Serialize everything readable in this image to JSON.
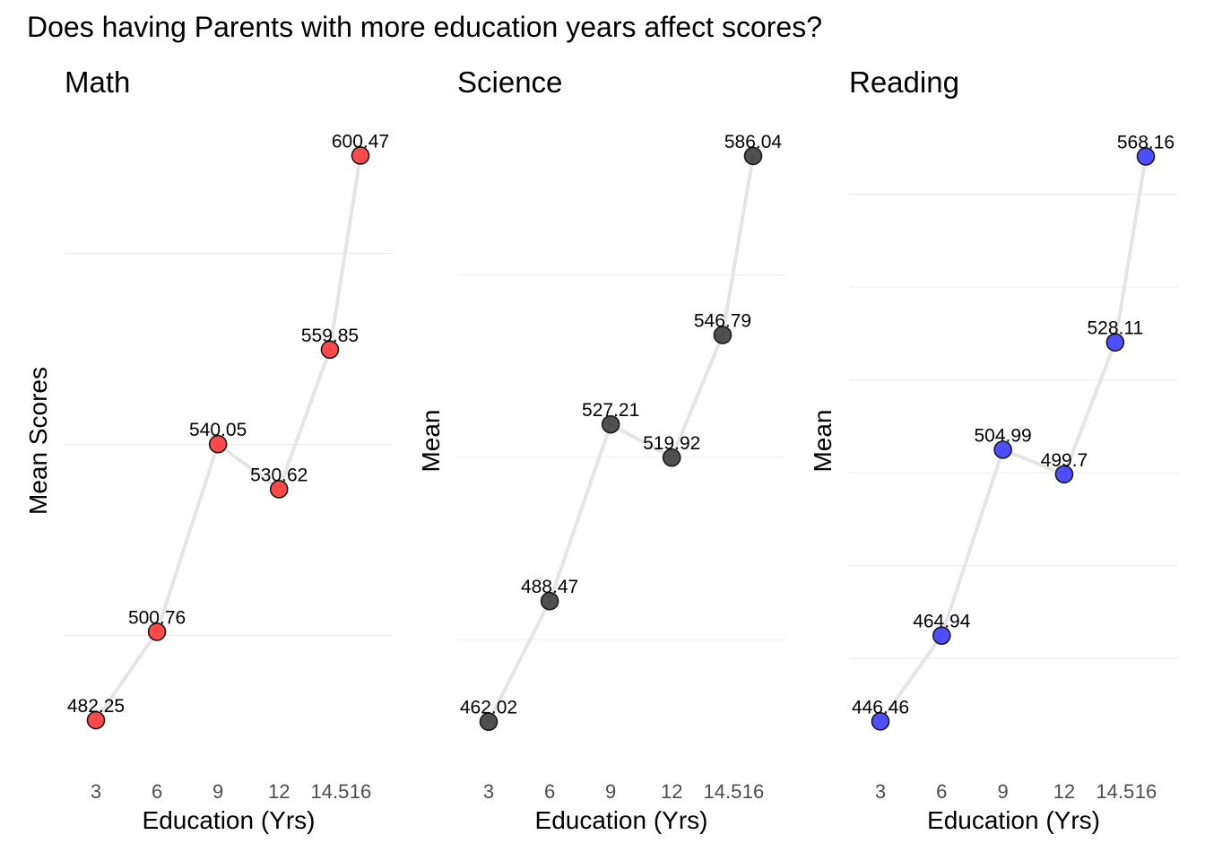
{
  "title": "Does having Parents with more education years affect scores?",
  "chart_data": [
    {
      "type": "line",
      "title": "Math",
      "xlabel": "Education (Yrs)",
      "ylabel": "Mean Scores",
      "x": [
        3,
        6,
        9,
        12,
        14.5,
        16
      ],
      "xtick_labels": [
        "3",
        "6",
        "9",
        "12",
        "14.5",
        "16"
      ],
      "values": [
        482.25,
        500.76,
        540.05,
        530.62,
        559.85,
        600.47
      ],
      "point_labels": [
        "482.25",
        "500.76",
        "540.05",
        "530.62",
        "559.85",
        "600.47"
      ],
      "ylim": [
        480,
        601.5
      ],
      "gridlines_y": [
        500,
        540,
        580
      ],
      "marker_color": "#ff2b2b",
      "line_color": "#e5e5e5",
      "grid": true
    },
    {
      "type": "line",
      "title": "Science",
      "xlabel": "Education (Yrs)",
      "ylabel": "Mean",
      "x": [
        3,
        6,
        9,
        12,
        14.5,
        16
      ],
      "xtick_labels": [
        "3",
        "6",
        "9",
        "12",
        "14.5",
        "16"
      ],
      "values": [
        462.02,
        488.47,
        527.21,
        519.92,
        546.79,
        586.04
      ],
      "point_labels": [
        "462.02",
        "488.47",
        "527.21",
        "519.92",
        "546.79",
        "586.04"
      ],
      "ylim": [
        460,
        587.2
      ],
      "gridlines_y": [
        480,
        520,
        560
      ],
      "marker_color": "#333333",
      "line_color": "#e5e5e5",
      "grid": true
    },
    {
      "type": "line",
      "title": "Reading",
      "xlabel": "Education (Yrs)",
      "ylabel": "Mean",
      "x": [
        3,
        6,
        9,
        12,
        14.5,
        16
      ],
      "xtick_labels": [
        "3",
        "6",
        "9",
        "12",
        "14.5",
        "16"
      ],
      "values": [
        446.46,
        464.94,
        504.99,
        499.7,
        528.11,
        568.16
      ],
      "point_labels": [
        "446.46",
        "464.94",
        "504.99",
        "499.7",
        "528.11",
        "568.16"
      ],
      "ylim": [
        444.4,
        569.4
      ],
      "gridlines_y": [
        460,
        480,
        500,
        520,
        540,
        560
      ],
      "marker_color": "#3030ff",
      "line_color": "#e5e5e5",
      "grid": true
    }
  ]
}
